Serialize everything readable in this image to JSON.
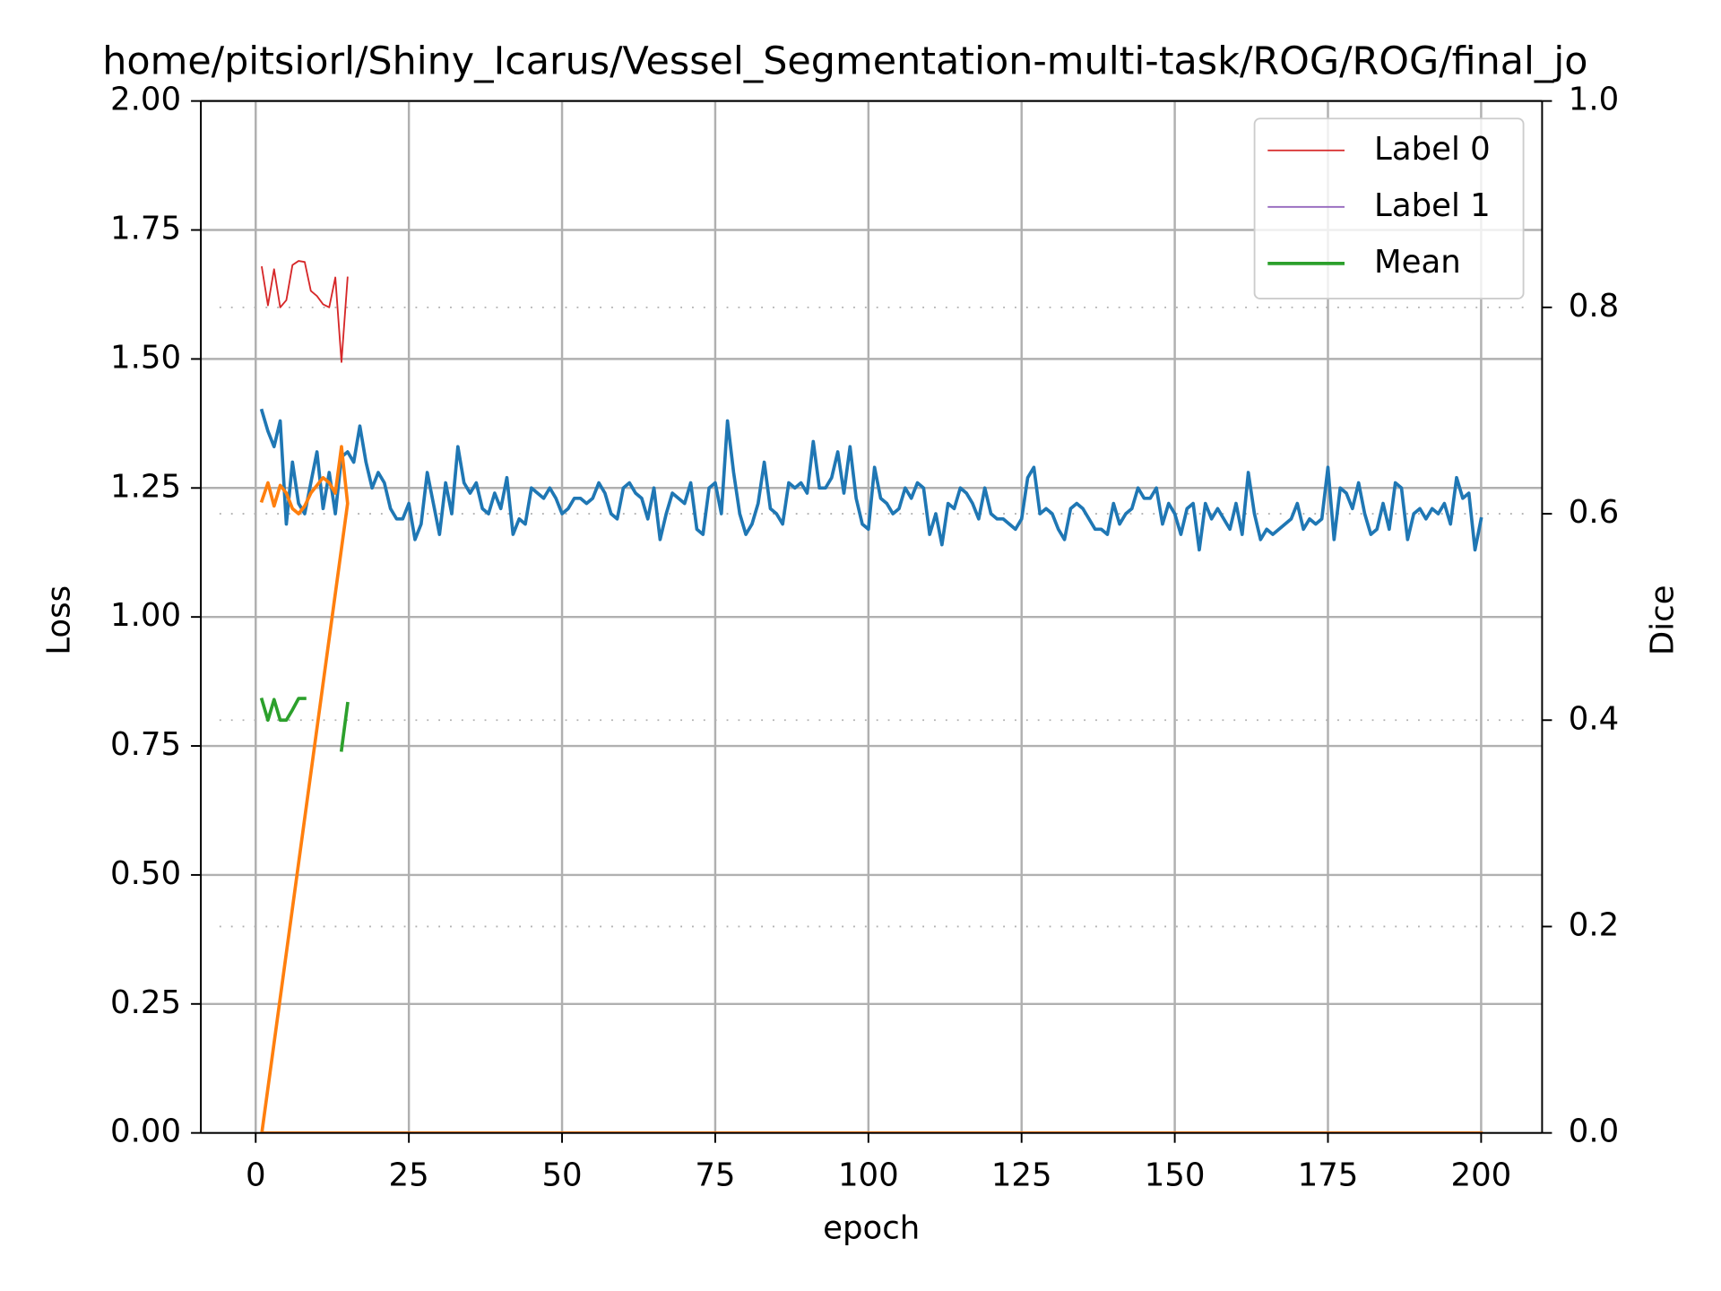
{
  "chart_data": {
    "type": "line",
    "title": "home/pitsiorl/Shiny_Icarus/Vessel_Segmentation-multi-task/ROG/ROG/final_jo",
    "xlabel": "epoch",
    "ylabel": "Loss",
    "y2label": "Dice",
    "xlim": [
      -8.95,
      209.95
    ],
    "xticks": [
      0,
      25,
      50,
      75,
      100,
      125,
      150,
      175,
      200
    ],
    "ylim": [
      0,
      2
    ],
    "yticks": [
      {
        "value": 0,
        "label": "0.00"
      },
      0.25,
      {
        "value": 0.5,
        "label": "0.50"
      },
      0.75,
      {
        "value": 1,
        "label": "1.00"
      },
      1.25,
      {
        "value": 1.5,
        "label": "1.50"
      },
      1.75,
      {
        "value": 2,
        "label": "2.00"
      }
    ],
    "y2lim": [
      0,
      1
    ],
    "y2ticks": [
      {
        "value": 0,
        "label": "0.0"
      },
      0.2,
      0.4,
      0.6,
      0.8,
      {
        "value": 1,
        "label": "1.0"
      }
    ],
    "grid": true,
    "y2grid": true,
    "legend": "upper right",
    "x": [
      1,
      2,
      3,
      4,
      5,
      6,
      7,
      8,
      9,
      10,
      11,
      12,
      13,
      14,
      15,
      16,
      17,
      18,
      19,
      20,
      21,
      22,
      23,
      24,
      25,
      26,
      27,
      28,
      29,
      30,
      31,
      32,
      33,
      34,
      35,
      36,
      37,
      38,
      39,
      40,
      41,
      42,
      43,
      44,
      45,
      46,
      47,
      48,
      49,
      50,
      51,
      52,
      53,
      54,
      55,
      56,
      57,
      58,
      59,
      60,
      61,
      62,
      63,
      64,
      65,
      66,
      67,
      68,
      69,
      70,
      71,
      72,
      73,
      74,
      75,
      76,
      77,
      78,
      79,
      80,
      81,
      82,
      83,
      84,
      85,
      86,
      87,
      88,
      89,
      90,
      91,
      92,
      93,
      94,
      95,
      96,
      97,
      98,
      99,
      100,
      101,
      102,
      103,
      104,
      105,
      106,
      107,
      108,
      109,
      110,
      111,
      112,
      113,
      114,
      115,
      116,
      117,
      118,
      119,
      120,
      121,
      122,
      123,
      124,
      125,
      126,
      127,
      128,
      129,
      130,
      131,
      132,
      133,
      134,
      135,
      136,
      137,
      138,
      139,
      140,
      141,
      142,
      143,
      144,
      145,
      146,
      147,
      148,
      149,
      150,
      151,
      152,
      153,
      154,
      155,
      156,
      157,
      158,
      159,
      160,
      161,
      162,
      163,
      164,
      165,
      166,
      167,
      168,
      169,
      170,
      171,
      172,
      173,
      174,
      175,
      176,
      177,
      178,
      179,
      180,
      181,
      182,
      183,
      184,
      185,
      186,
      187,
      188,
      189,
      190,
      191,
      192,
      193,
      194,
      195,
      196,
      197,
      198,
      199,
      200
    ],
    "series": [
      {
        "color": "#1f77b4",
        "width": 3,
        "values": [
          1.4,
          1.36,
          1.33,
          1.38,
          1.18,
          1.3,
          1.22,
          1.2,
          1.26,
          1.32,
          1.21,
          1.28,
          1.2,
          1.31,
          1.32,
          1.3,
          1.37,
          1.3,
          1.25,
          1.28,
          1.26,
          1.21,
          1.19,
          1.19,
          1.22,
          1.15,
          1.18,
          1.28,
          1.22,
          1.16,
          1.26,
          1.2,
          1.33,
          1.26,
          1.24,
          1.26,
          1.21,
          1.2,
          1.24,
          1.21,
          1.27,
          1.16,
          1.19,
          1.18,
          1.25,
          1.24,
          1.23,
          1.25,
          1.23,
          1.2,
          1.21,
          1.23,
          1.23,
          1.22,
          1.23,
          1.26,
          1.24,
          1.2,
          1.19,
          1.25,
          1.26,
          1.24,
          1.23,
          1.19,
          1.25,
          1.15,
          1.2,
          1.24,
          1.23,
          1.22,
          1.26,
          1.17,
          1.16,
          1.25,
          1.26,
          1.2,
          1.38,
          1.28,
          1.2,
          1.16,
          1.18,
          1.22,
          1.3,
          1.21,
          1.2,
          1.18,
          1.26,
          1.25,
          1.26,
          1.24,
          1.34,
          1.25,
          1.25,
          1.27,
          1.32,
          1.24,
          1.33,
          1.23,
          1.18,
          1.17,
          1.29,
          1.23,
          1.22,
          1.2,
          1.21,
          1.25,
          1.23,
          1.26,
          1.25,
          1.16,
          1.2,
          1.14,
          1.22,
          1.21,
          1.25,
          1.24,
          1.22,
          1.19,
          1.25,
          1.2,
          1.19,
          1.19,
          1.18,
          1.17,
          1.19,
          1.27,
          1.29,
          1.2,
          1.21,
          1.2,
          1.17,
          1.15,
          1.21,
          1.22,
          1.21,
          1.19,
          1.17,
          1.17,
          1.16,
          1.22,
          1.18,
          1.2,
          1.21,
          1.25,
          1.23,
          1.23,
          1.25,
          1.18,
          1.22,
          1.2,
          1.16,
          1.21,
          1.22,
          1.13,
          1.22,
          1.19,
          1.21,
          1.19,
          1.17,
          1.22,
          1.16,
          1.28,
          1.2,
          1.15,
          1.17,
          1.16,
          1.17,
          1.18,
          1.19,
          1.22,
          1.17,
          1.19,
          1.18,
          1.19,
          1.29,
          1.15,
          1.25,
          1.24,
          1.21,
          1.26,
          1.2,
          1.16,
          1.17,
          1.22,
          1.17,
          1.26,
          1.25,
          1.15,
          1.2,
          1.21,
          1.19,
          1.21,
          1.2,
          1.22,
          1.18,
          1.27,
          1.23,
          1.24,
          1.13,
          1.19
        ]
      },
      {
        "color": "#ff7f0e",
        "width": 3,
        "x": [
          1,
          2,
          3,
          4,
          5,
          6,
          7,
          8,
          9,
          10,
          11,
          12,
          13,
          14,
          15,
          1,
          200
        ],
        "values": [
          1.225,
          1.26,
          1.215,
          1.255,
          1.24,
          1.21,
          1.2,
          1.215,
          1.24,
          1.255,
          1.27,
          1.26,
          1.24,
          1.33,
          1.22,
          0,
          0
        ]
      },
      {
        "name": "Label 0",
        "color": "#d62728",
        "width": 1.5,
        "axis": "y2",
        "x": [
          1,
          2,
          3,
          4,
          5,
          6,
          7,
          8,
          9,
          10,
          11,
          12,
          13,
          14,
          15
        ],
        "values": [
          0.839,
          0.802,
          0.837,
          0.8,
          0.807,
          0.841,
          0.845,
          0.844,
          0.816,
          0.811,
          0.803,
          0.8,
          0.829,
          0.747,
          0.829
        ]
      },
      {
        "name": "Label 1",
        "color": "#9467bd",
        "width": 1.5,
        "axis": "y2",
        "x": [],
        "values": []
      },
      {
        "name": "Mean",
        "color": "#2ca02c",
        "width": 3,
        "axis": "y2",
        "x": [
          1,
          2,
          3,
          4,
          5,
          6,
          7,
          8,
          9,
          10,
          11,
          12,
          13,
          14,
          15
        ],
        "values": [
          0.42,
          0.4,
          0.42,
          0.4,
          0.4,
          0.41,
          0.421,
          0.421,
          null,
          null,
          null,
          null,
          null,
          0.371,
          0.416
        ]
      }
    ]
  }
}
